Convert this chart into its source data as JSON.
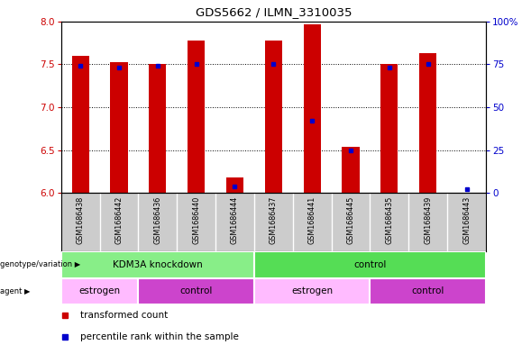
{
  "title": "GDS5662 / ILMN_3310035",
  "samples": [
    "GSM1686438",
    "GSM1686442",
    "GSM1686436",
    "GSM1686440",
    "GSM1686444",
    "GSM1686437",
    "GSM1686441",
    "GSM1686445",
    "GSM1686435",
    "GSM1686439",
    "GSM1686443"
  ],
  "transformed_counts": [
    7.6,
    7.52,
    7.5,
    7.78,
    6.18,
    7.78,
    7.96,
    6.54,
    7.5,
    7.63,
    6.0
  ],
  "percentile_ranks": [
    74,
    73,
    74,
    75,
    4,
    75,
    42,
    25,
    73,
    75,
    2
  ],
  "ylim_left": [
    6.0,
    8.0
  ],
  "ylim_right": [
    0,
    100
  ],
  "yticks_left": [
    6.0,
    6.5,
    7.0,
    7.5,
    8.0
  ],
  "yticks_right": [
    0,
    25,
    50,
    75,
    100
  ],
  "ytick_labels_right": [
    "0",
    "25",
    "50",
    "75",
    "100%"
  ],
  "bar_color": "#cc0000",
  "dot_color": "#0000cc",
  "genotype_groups": [
    {
      "label": "KDM3A knockdown",
      "start": 0,
      "end": 4,
      "color": "#88ee88"
    },
    {
      "label": "control",
      "start": 5,
      "end": 10,
      "color": "#55dd55"
    }
  ],
  "agent_groups": [
    {
      "label": "estrogen",
      "start": 0,
      "end": 1,
      "color": "#ffbbff"
    },
    {
      "label": "control",
      "start": 2,
      "end": 4,
      "color": "#cc44cc"
    },
    {
      "label": "estrogen",
      "start": 5,
      "end": 7,
      "color": "#ffbbff"
    },
    {
      "label": "control",
      "start": 8,
      "end": 10,
      "color": "#cc44cc"
    }
  ],
  "background_color": "#ffffff",
  "plot_bg_color": "#ffffff",
  "tick_color_left": "#cc0000",
  "tick_color_right": "#0000cc",
  "sample_bg_color": "#cccccc",
  "bar_width": 0.45,
  "left_labels": [
    "genotype/variation",
    "agent"
  ],
  "legend_items": [
    {
      "label": "transformed count",
      "color": "#cc0000"
    },
    {
      "label": "percentile rank within the sample",
      "color": "#0000cc"
    }
  ]
}
